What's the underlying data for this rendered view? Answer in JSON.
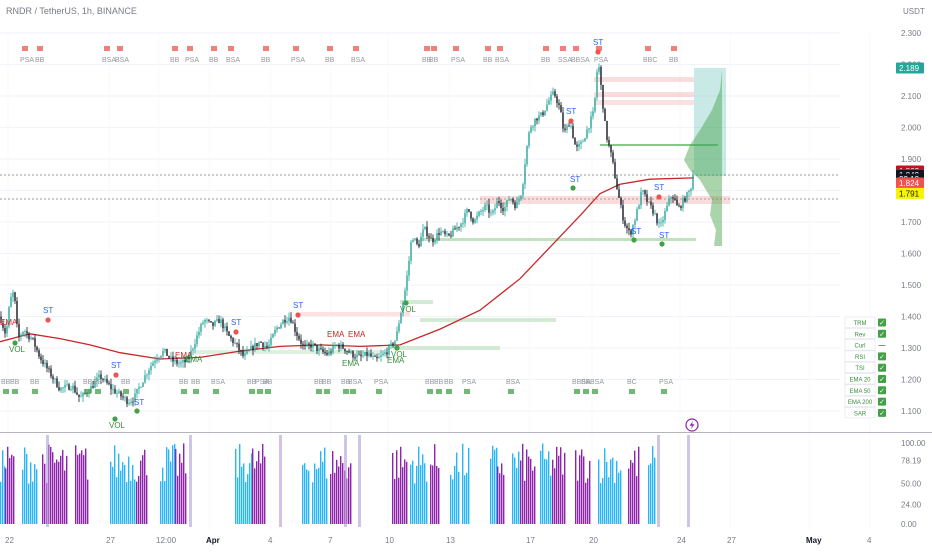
{
  "header": {
    "symbol_title": "RNDR / TetherUS, 1h, BINANCE",
    "currency": "USDT"
  },
  "price_axis": {
    "ticks": [
      "2.300",
      "2.200",
      "2.100",
      "2.000",
      "1.900",
      "1.800",
      "1.700",
      "1.600",
      "1.500",
      "1.400",
      "1.300",
      "1.200",
      "1.100"
    ],
    "tick_values": [
      2.3,
      2.2,
      2.1,
      2.0,
      1.9,
      1.8,
      1.7,
      1.6,
      1.5,
      1.4,
      1.3,
      1.2,
      1.1
    ]
  },
  "price_labels": [
    {
      "text": "2.189",
      "value": 2.189,
      "bg": "#26a69a",
      "fg": "#ffffff"
    },
    {
      "text": "1.862",
      "value": 1.862,
      "bg": "#c1121f",
      "fg": "#ffffff"
    },
    {
      "text": "1.850",
      "value": 1.85,
      "bg": "#787b86",
      "fg": "#ffffff"
    },
    {
      "text": "1.849",
      "value": 1.849,
      "bg": "#131722",
      "fg": "#ffffff"
    },
    {
      "text": "32:19",
      "value": 1.836,
      "bg": "#131722",
      "fg": "#ffffff"
    },
    {
      "text": "1.824",
      "value": 1.824,
      "bg": "#ef5350",
      "fg": "#ffffff"
    },
    {
      "text": "1.791",
      "value": 1.791,
      "bg": "#f5f500",
      "fg": "#131722"
    }
  ],
  "osc_axis": {
    "ticks": [
      "100.00",
      "78.19",
      "50.00",
      "24.00",
      "0.00"
    ],
    "tick_values": [
      100,
      78.19,
      50,
      24,
      0
    ]
  },
  "time_axis": [
    {
      "label": "22"
    },
    {
      "label": "27"
    },
    {
      "label": "12:00"
    },
    {
      "label": "Apr",
      "bold": true
    },
    {
      "label": "4"
    },
    {
      "label": "7"
    },
    {
      "label": "10"
    },
    {
      "label": "13"
    },
    {
      "label": "17"
    },
    {
      "label": "20"
    },
    {
      "label": "24"
    },
    {
      "label": "27"
    },
    {
      "label": "May",
      "bold": true
    },
    {
      "label": "4"
    }
  ],
  "chart_labels": {
    "st": "ST",
    "vol": "VOL",
    "ema": "EMA",
    "bb": "BB",
    "bsa": "BSA",
    "psa": "PSA",
    "bbsa": "BBSA",
    "ssa": "SSA",
    "bbc": "BBC",
    "bc": "BC"
  },
  "legend_table": [
    {
      "label": "TRM",
      "state": "✓"
    },
    {
      "label": "Rev",
      "state": "✓"
    },
    {
      "label": "Curl",
      "state": "—"
    },
    {
      "label": "RSI",
      "state": "✓"
    },
    {
      "label": "TSI",
      "state": "✓"
    },
    {
      "label": "EMA 20",
      "state": "✓"
    },
    {
      "label": "EMA 50",
      "state": "✓"
    },
    {
      "label": "EMA 200",
      "state": "✓"
    },
    {
      "label": "SAR",
      "state": "✓"
    }
  ],
  "alert_icon": "lightning-icon",
  "colors": {
    "up": "#26a69a",
    "down": "#131722",
    "ema": "#c62828",
    "fast_line": "#d4e157",
    "st_label": "#2962ff",
    "green_dot": "#43a047",
    "red_dot": "#ef5350",
    "osc_cyan": "#29b6f6",
    "osc_purple": "#8e24aa",
    "osc_lavender": "#b39ddb"
  },
  "chart_data": {
    "type": "candlestick",
    "title": "RNDR / TetherUS, 1h, BINANCE",
    "ylim": [
      1.06,
      2.34
    ],
    "last_price": 1.849,
    "close_path": [
      [
        0,
        1.4
      ],
      [
        6,
        1.34
      ],
      [
        10,
        1.45
      ],
      [
        14,
        1.48
      ],
      [
        18,
        1.33
      ],
      [
        24,
        1.36
      ],
      [
        28,
        1.34
      ],
      [
        32,
        1.33
      ],
      [
        40,
        1.27
      ],
      [
        50,
        1.22
      ],
      [
        60,
        1.17
      ],
      [
        72,
        1.18
      ],
      [
        80,
        1.14
      ],
      [
        90,
        1.17
      ],
      [
        100,
        1.21
      ],
      [
        112,
        1.17
      ],
      [
        120,
        1.15
      ],
      [
        128,
        1.13
      ],
      [
        134,
        1.14
      ],
      [
        140,
        1.18
      ],
      [
        148,
        1.23
      ],
      [
        156,
        1.27
      ],
      [
        164,
        1.29
      ],
      [
        172,
        1.26
      ],
      [
        180,
        1.25
      ],
      [
        188,
        1.26
      ],
      [
        196,
        1.33
      ],
      [
        204,
        1.39
      ],
      [
        212,
        1.37
      ],
      [
        220,
        1.39
      ],
      [
        228,
        1.34
      ],
      [
        236,
        1.31
      ],
      [
        244,
        1.27
      ],
      [
        252,
        1.3
      ],
      [
        260,
        1.32
      ],
      [
        268,
        1.3
      ],
      [
        276,
        1.36
      ],
      [
        284,
        1.39
      ],
      [
        290,
        1.4
      ],
      [
        296,
        1.35
      ],
      [
        304,
        1.3
      ],
      [
        312,
        1.31
      ],
      [
        320,
        1.29
      ],
      [
        328,
        1.28
      ],
      [
        336,
        1.31
      ],
      [
        344,
        1.3
      ],
      [
        352,
        1.28
      ],
      [
        360,
        1.27
      ],
      [
        368,
        1.28
      ],
      [
        376,
        1.26
      ],
      [
        384,
        1.28
      ],
      [
        390,
        1.3
      ],
      [
        396,
        1.33
      ],
      [
        400,
        1.4
      ],
      [
        404,
        1.46
      ],
      [
        408,
        1.55
      ],
      [
        412,
        1.66
      ],
      [
        418,
        1.62
      ],
      [
        424,
        1.68
      ],
      [
        432,
        1.64
      ],
      [
        440,
        1.67
      ],
      [
        448,
        1.65
      ],
      [
        456,
        1.68
      ],
      [
        462,
        1.7
      ],
      [
        468,
        1.74
      ],
      [
        474,
        1.7
      ],
      [
        480,
        1.73
      ],
      [
        486,
        1.75
      ],
      [
        492,
        1.72
      ],
      [
        498,
        1.77
      ],
      [
        504,
        1.74
      ],
      [
        510,
        1.78
      ],
      [
        516,
        1.75
      ],
      [
        522,
        1.8
      ],
      [
        526,
        1.92
      ],
      [
        530,
        2.0
      ],
      [
        536,
        2.03
      ],
      [
        542,
        2.04
      ],
      [
        548,
        2.08
      ],
      [
        554,
        2.11
      ],
      [
        560,
        2.06
      ],
      [
        564,
        1.98
      ],
      [
        570,
        2.02
      ],
      [
        576,
        1.93
      ],
      [
        582,
        1.95
      ],
      [
        588,
        2.0
      ],
      [
        594,
        2.05
      ],
      [
        598,
        2.22
      ],
      [
        602,
        2.1
      ],
      [
        606,
        1.98
      ],
      [
        612,
        1.9
      ],
      [
        618,
        1.79
      ],
      [
        624,
        1.7
      ],
      [
        630,
        1.66
      ],
      [
        636,
        1.72
      ],
      [
        642,
        1.8
      ],
      [
        648,
        1.76
      ],
      [
        654,
        1.73
      ],
      [
        660,
        1.68
      ],
      [
        666,
        1.74
      ],
      [
        672,
        1.79
      ],
      [
        678,
        1.74
      ],
      [
        684,
        1.77
      ],
      [
        690,
        1.8
      ],
      [
        694,
        1.849
      ]
    ],
    "ema_path": [
      [
        0,
        1.32
      ],
      [
        30,
        1.345
      ],
      [
        60,
        1.33
      ],
      [
        90,
        1.31
      ],
      [
        120,
        1.285
      ],
      [
        160,
        1.265
      ],
      [
        200,
        1.27
      ],
      [
        240,
        1.29
      ],
      [
        280,
        1.305
      ],
      [
        320,
        1.31
      ],
      [
        360,
        1.305
      ],
      [
        400,
        1.31
      ],
      [
        440,
        1.36
      ],
      [
        480,
        1.42
      ],
      [
        520,
        1.52
      ],
      [
        550,
        1.62
      ],
      [
        580,
        1.72
      ],
      [
        600,
        1.79
      ],
      [
        620,
        1.82
      ],
      [
        650,
        1.836
      ],
      [
        694,
        1.84
      ]
    ],
    "indicators": [
      "TRM",
      "Rev",
      "Curl",
      "RSI",
      "TSI",
      "EMA 20",
      "EMA 50",
      "EMA 200",
      "SAR"
    ],
    "oscillator": {
      "range": [
        0,
        100
      ],
      "levels": [
        100,
        78.19,
        50,
        24,
        0
      ]
    }
  }
}
